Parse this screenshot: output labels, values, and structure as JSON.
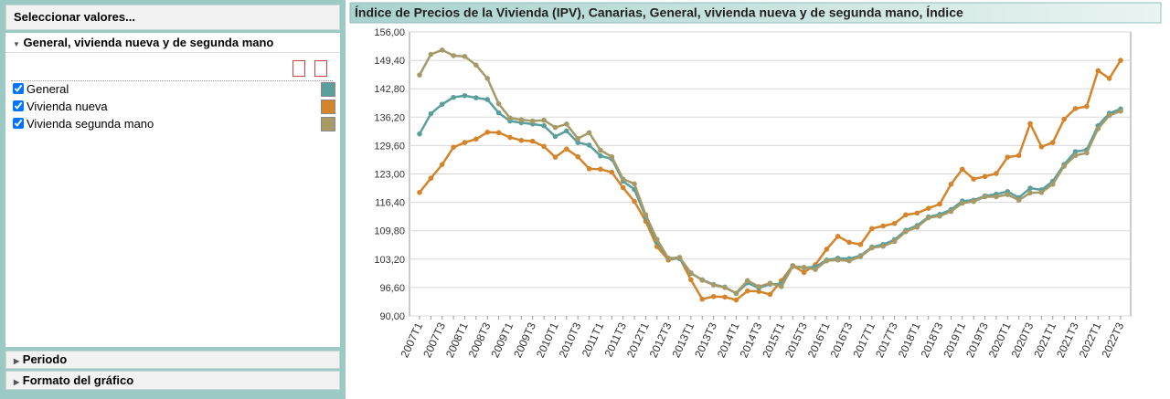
{
  "panel": {
    "header": "Seleccionar valores...",
    "section": "General, vivienda nueva y de segunda mano",
    "collapsed": [
      "Periodo",
      "Formato del gráfico"
    ]
  },
  "chart_data": {
    "type": "line",
    "title": "Índice de Precios de la Vivienda (IPV), Canarias, General, vivienda nueva y de segunda mano, Índice",
    "categories": [
      "2007T1",
      null,
      "2007T3",
      null,
      "2008T1",
      null,
      "2008T3",
      null,
      "2009T1",
      null,
      "2009T3",
      null,
      "2010T1",
      null,
      "2010T3",
      null,
      "2011T1",
      null,
      "2011T3",
      null,
      "2012T1",
      null,
      "2012T3",
      null,
      "2013T1",
      null,
      "2013T3",
      null,
      "2014T1",
      null,
      "2014T3",
      null,
      "2015T1",
      null,
      "2015T3",
      null,
      "2016T1",
      null,
      "2016T3",
      null,
      "2017T1",
      null,
      "2017T3",
      null,
      "2018T1",
      null,
      "2018T3",
      null,
      "2019T1",
      null,
      "2019T3",
      null,
      "2020T1",
      null,
      "2020T3",
      null,
      "2021T1",
      null,
      "2021T3",
      null,
      "2022T1",
      null,
      "2022T3"
    ],
    "series": [
      {
        "name": "General",
        "color": "#5b9f9c",
        "values": [
          132.3,
          137,
          139.2,
          140.8,
          141.2,
          140.7,
          140.3,
          137.2,
          135.3,
          134.9,
          134.6,
          134.2,
          131.7,
          133,
          130.3,
          129.7,
          127.2,
          126.5,
          121.3,
          119.4,
          113,
          107.2,
          103.4,
          103.3,
          99.9,
          98.4,
          97.3,
          96.7,
          95.2,
          97.7,
          96.5,
          97.4,
          97.4,
          101.6,
          101.2,
          101.4,
          103,
          103.4,
          103.3,
          104,
          106,
          106.6,
          107.7,
          109.9,
          111,
          113,
          113.6,
          114.7,
          116.7,
          116.9,
          117.9,
          118.3,
          118.9,
          117.5,
          119.7,
          119.3,
          121.3,
          125.2,
          128.2,
          128.6,
          134.2,
          137.1,
          138.1
        ]
      },
      {
        "name": "Vivienda nueva",
        "color": "#d4842a",
        "values": [
          118.7,
          122,
          125.2,
          129.2,
          130.3,
          131.1,
          132.7,
          132.6,
          131.5,
          130.8,
          130.6,
          129.4,
          126.9,
          128.8,
          127,
          124.2,
          124.1,
          123.4,
          119.8,
          116.6,
          112,
          106.1,
          103,
          103.5,
          98.4,
          93.9,
          94.5,
          94.4,
          93.7,
          95.8,
          95.7,
          95,
          98.2,
          101.7,
          100.1,
          101.9,
          105.5,
          108.5,
          107.1,
          106.6,
          110.3,
          110.9,
          111.5,
          113.5,
          113.9,
          115,
          116,
          120.6,
          124.1,
          121.8,
          122.4,
          123.1,
          126.9,
          127.3,
          134.7,
          129.3,
          130.3,
          135.7,
          138.2,
          138.7,
          147,
          145.2,
          149.4
        ]
      },
      {
        "name": "Vivienda segunda mano",
        "color": "#a69a68",
        "values": [
          146,
          150.8,
          151.8,
          150.5,
          150.3,
          148.3,
          145.2,
          139.3,
          136,
          135.6,
          135.3,
          135.5,
          133.8,
          134.6,
          131.2,
          132.6,
          128.5,
          127,
          121.8,
          120.7,
          113.5,
          107.8,
          103.4,
          103.6,
          100,
          98.3,
          97.2,
          96.6,
          95.3,
          98.2,
          96.8,
          97.6,
          96.8,
          101.5,
          101.3,
          100.8,
          102.8,
          103,
          102.8,
          103.8,
          105.8,
          106.2,
          107.3,
          109.6,
          110.6,
          112.8,
          113.2,
          114.3,
          116.2,
          116.6,
          117.7,
          117.7,
          118.2,
          116.9,
          118.6,
          118.7,
          120.6,
          124.8,
          127.3,
          127.9,
          133.5,
          136.6,
          137.6
        ]
      }
    ],
    "ylim": [
      90,
      156
    ],
    "yticks": [
      {
        "value": 90,
        "label": "90,00"
      },
      {
        "value": 96.6,
        "label": "96,60"
      },
      {
        "value": 103.2,
        "label": "103,20"
      },
      {
        "value": 109.8,
        "label": "109,80"
      },
      {
        "value": 116.4,
        "label": "116,40"
      },
      {
        "value": 123,
        "label": "123,00"
      },
      {
        "value": 129.6,
        "label": "129,60"
      },
      {
        "value": 136.2,
        "label": "136,20"
      },
      {
        "value": 142.8,
        "label": "142,80"
      },
      {
        "value": 149.4,
        "label": "149,40"
      },
      {
        "value": 156,
        "label": "156,00"
      }
    ],
    "grid": true
  }
}
